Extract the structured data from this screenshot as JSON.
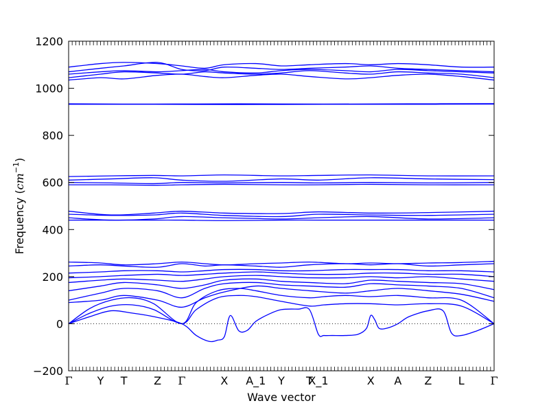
{
  "chart_data": {
    "type": "line",
    "xlabel": "Wave vector",
    "ylabel_text": "Frequency (",
    "ylabel_math": "cm",
    "ylabel_sup": "−1",
    "ylabel_close": ")",
    "ylim": [
      -200,
      1200
    ],
    "yticks": [
      -200,
      0,
      200,
      400,
      600,
      800,
      1000,
      1200
    ],
    "ytick_labels": [
      "−200",
      "0",
      "200",
      "400",
      "600",
      "800",
      "1000",
      "1200"
    ],
    "grid": false,
    "zero_line": true,
    "line_color": "#0000ff",
    "kpath_labels": [
      "Γ",
      "Y",
      "T",
      "Z",
      "Γ",
      "X",
      "A_1",
      "Y",
      "T",
      "X_1",
      "X",
      "A",
      "Z",
      "L",
      "Γ"
    ],
    "kpath_positions": [
      0,
      0.075,
      0.13,
      0.209,
      0.266,
      0.366,
      0.44,
      0.5,
      0.566,
      0.587,
      0.71,
      0.774,
      0.845,
      0.923,
      1.0
    ],
    "x_range": [
      0,
      1
    ],
    "bands": [
      {
        "name": "",
        "x": [
          0,
          0.05,
          0.1,
          0.15,
          0.2,
          0.266,
          0.3,
          0.33,
          0.35,
          0.366,
          0.38,
          0.4,
          0.42,
          0.44,
          0.47,
          0.5,
          0.54,
          0.566,
          0.587,
          0.6,
          0.62,
          0.65,
          0.68,
          0.7,
          0.71,
          0.72,
          0.73,
          0.75,
          0.774,
          0.8,
          0.845,
          0.88,
          0.9,
          0.923,
          0.96,
          1.0
        ],
        "y": [
          0,
          30,
          55,
          45,
          30,
          0,
          -50,
          -75,
          -70,
          -55,
          35,
          -30,
          -28,
          10,
          40,
          60,
          62,
          60,
          -45,
          -50,
          -50,
          -50,
          -45,
          -20,
          35,
          15,
          -20,
          -18,
          0,
          30,
          55,
          55,
          -40,
          -50,
          -30,
          0
        ]
      },
      {
        "name": "",
        "x": [
          0,
          0.05,
          0.1,
          0.15,
          0.2,
          0.266,
          0.3,
          0.35,
          0.4,
          0.44,
          0.5,
          0.566,
          0.6,
          0.65,
          0.71,
          0.774,
          0.845,
          0.923,
          1.0
        ],
        "y": [
          0,
          45,
          75,
          80,
          60,
          0,
          60,
          110,
          120,
          115,
          95,
          75,
          80,
          85,
          85,
          80,
          85,
          75,
          0
        ]
      },
      {
        "name": "",
        "x": [
          0,
          0.05,
          0.1,
          0.15,
          0.2,
          0.266,
          0.3,
          0.35,
          0.4,
          0.44,
          0.5,
          0.566,
          0.6,
          0.65,
          0.71,
          0.774,
          0.845,
          0.923,
          1.0
        ],
        "y": [
          0,
          65,
          100,
          110,
          85,
          0,
          90,
          140,
          150,
          140,
          120,
          110,
          115,
          120,
          115,
          120,
          110,
          100,
          0
        ]
      },
      {
        "name": "",
        "x": [
          0,
          0.075,
          0.13,
          0.209,
          0.266,
          0.32,
          0.366,
          0.44,
          0.5,
          0.566,
          0.65,
          0.71,
          0.774,
          0.845,
          0.923,
          1.0
        ],
        "y": [
          90,
          100,
          120,
          100,
          70,
          110,
          135,
          160,
          150,
          140,
          130,
          140,
          150,
          140,
          125,
          95
        ]
      },
      {
        "name": "",
        "x": [
          0,
          0.075,
          0.13,
          0.209,
          0.266,
          0.32,
          0.366,
          0.44,
          0.5,
          0.566,
          0.65,
          0.71,
          0.774,
          0.845,
          0.923,
          1.0
        ],
        "y": [
          100,
          130,
          150,
          140,
          110,
          150,
          170,
          175,
          165,
          160,
          155,
          170,
          165,
          160,
          150,
          110
        ]
      },
      {
        "name": "",
        "x": [
          0,
          0.075,
          0.13,
          0.209,
          0.266,
          0.32,
          0.366,
          0.44,
          0.5,
          0.566,
          0.65,
          0.71,
          0.774,
          0.845,
          0.923,
          1.0
        ],
        "y": [
          140,
          160,
          175,
          165,
          150,
          165,
          185,
          190,
          180,
          175,
          170,
          185,
          180,
          175,
          170,
          145
        ]
      },
      {
        "name": "",
        "x": [
          0,
          0.075,
          0.13,
          0.209,
          0.266,
          0.32,
          0.366,
          0.44,
          0.5,
          0.566,
          0.65,
          0.71,
          0.774,
          0.845,
          0.923,
          1.0
        ],
        "y": [
          175,
          185,
          190,
          185,
          180,
          190,
          200,
          205,
          200,
          195,
          195,
          200,
          195,
          200,
          190,
          180
        ]
      },
      {
        "name": "",
        "x": [
          0,
          0.075,
          0.13,
          0.209,
          0.266,
          0.32,
          0.366,
          0.44,
          0.5,
          0.566,
          0.65,
          0.71,
          0.774,
          0.845,
          0.923,
          1.0
        ],
        "y": [
          195,
          200,
          205,
          210,
          205,
          210,
          215,
          220,
          215,
          210,
          210,
          215,
          215,
          210,
          210,
          200
        ]
      },
      {
        "name": "",
        "x": [
          0,
          0.075,
          0.13,
          0.209,
          0.266,
          0.32,
          0.366,
          0.44,
          0.5,
          0.566,
          0.65,
          0.71,
          0.774,
          0.845,
          0.923,
          1.0
        ],
        "y": [
          215,
          220,
          225,
          225,
          220,
          225,
          230,
          230,
          225,
          225,
          230,
          230,
          230,
          225,
          225,
          220
        ]
      },
      {
        "name": "",
        "x": [
          0,
          0.075,
          0.13,
          0.209,
          0.266,
          0.32,
          0.366,
          0.44,
          0.5,
          0.566,
          0.65,
          0.71,
          0.774,
          0.845,
          0.923,
          1.0
        ],
        "y": [
          245,
          250,
          245,
          240,
          255,
          245,
          250,
          245,
          240,
          250,
          255,
          250,
          255,
          245,
          250,
          255
        ]
      },
      {
        "name": "",
        "x": [
          0,
          0.075,
          0.13,
          0.209,
          0.266,
          0.32,
          0.366,
          0.44,
          0.5,
          0.566,
          0.65,
          0.71,
          0.774,
          0.845,
          0.923,
          1.0
        ],
        "y": [
          262,
          258,
          250,
          255,
          262,
          255,
          250,
          255,
          258,
          262,
          255,
          258,
          255,
          258,
          260,
          265
        ]
      },
      {
        "name": "",
        "x": [
          0,
          0.1,
          0.2,
          0.266,
          0.366,
          0.5,
          0.587,
          0.71,
          0.845,
          1.0
        ],
        "y": [
          440,
          440,
          440,
          440,
          438,
          440,
          440,
          440,
          440,
          440
        ]
      },
      {
        "name": "",
        "x": [
          0,
          0.1,
          0.2,
          0.266,
          0.366,
          0.5,
          0.587,
          0.71,
          0.845,
          1.0
        ],
        "y": [
          450,
          440,
          445,
          455,
          450,
          445,
          450,
          455,
          445,
          450
        ]
      },
      {
        "name": "",
        "x": [
          0,
          0.1,
          0.2,
          0.266,
          0.366,
          0.5,
          0.587,
          0.71,
          0.845,
          1.0
        ],
        "y": [
          465,
          460,
          462,
          470,
          460,
          455,
          465,
          462,
          460,
          465
        ]
      },
      {
        "name": "",
        "x": [
          0,
          0.1,
          0.2,
          0.266,
          0.366,
          0.5,
          0.587,
          0.71,
          0.845,
          1.0
        ],
        "y": [
          478,
          462,
          470,
          478,
          470,
          468,
          475,
          470,
          472,
          478
        ]
      },
      {
        "name": "",
        "x": [
          0,
          0.1,
          0.2,
          0.266,
          0.366,
          0.5,
          0.587,
          0.71,
          0.845,
          1.0
        ],
        "y": [
          590,
          590,
          588,
          590,
          592,
          590,
          590,
          592,
          590,
          590
        ]
      },
      {
        "name": "",
        "x": [
          0,
          0.1,
          0.2,
          0.266,
          0.366,
          0.5,
          0.587,
          0.71,
          0.845,
          1.0
        ],
        "y": [
          600,
          598,
          595,
          600,
          598,
          600,
          598,
          600,
          598,
          600
        ]
      },
      {
        "name": "",
        "x": [
          0,
          0.1,
          0.2,
          0.266,
          0.366,
          0.5,
          0.587,
          0.71,
          0.845,
          1.0
        ],
        "y": [
          610,
          615,
          620,
          610,
          605,
          615,
          610,
          620,
          615,
          612
        ]
      },
      {
        "name": "",
        "x": [
          0,
          0.1,
          0.2,
          0.266,
          0.366,
          0.5,
          0.587,
          0.71,
          0.845,
          1.0
        ],
        "y": [
          625,
          628,
          630,
          628,
          632,
          628,
          630,
          632,
          628,
          628
        ]
      },
      {
        "name": "",
        "x": [
          0,
          0.2,
          0.4,
          0.6,
          0.8,
          1.0
        ],
        "y": [
          932,
          932,
          931,
          932,
          932,
          933
        ]
      },
      {
        "name": "",
        "x": [
          0,
          0.2,
          0.4,
          0.6,
          0.8,
          1.0
        ],
        "y": [
          934,
          933,
          934,
          933,
          934,
          935
        ]
      },
      {
        "name": "",
        "x": [
          0,
          0.075,
          0.13,
          0.209,
          0.266,
          0.32,
          0.366,
          0.44,
          0.5,
          0.566,
          0.65,
          0.71,
          0.774,
          0.845,
          0.923,
          1.0
        ],
        "y": [
          1035,
          1045,
          1040,
          1055,
          1060,
          1050,
          1045,
          1055,
          1060,
          1050,
          1040,
          1045,
          1055,
          1060,
          1050,
          1035
        ]
      },
      {
        "name": "",
        "x": [
          0,
          0.075,
          0.13,
          0.209,
          0.266,
          0.32,
          0.366,
          0.44,
          0.5,
          0.566,
          0.65,
          0.71,
          0.774,
          0.845,
          0.923,
          1.0
        ],
        "y": [
          1045,
          1060,
          1070,
          1065,
          1060,
          1070,
          1065,
          1060,
          1065,
          1075,
          1065,
          1060,
          1070,
          1065,
          1060,
          1045
        ]
      },
      {
        "name": "",
        "x": [
          0,
          0.075,
          0.13,
          0.209,
          0.266,
          0.32,
          0.366,
          0.44,
          0.5,
          0.566,
          0.65,
          0.71,
          0.774,
          0.845,
          0.923,
          1.0
        ],
        "y": [
          1060,
          1070,
          1075,
          1070,
          1075,
          1080,
          1070,
          1065,
          1075,
          1080,
          1075,
          1070,
          1080,
          1075,
          1070,
          1065
        ]
      },
      {
        "name": "",
        "x": [
          0,
          0.075,
          0.13,
          0.209,
          0.266,
          0.32,
          0.366,
          0.44,
          0.5,
          0.566,
          0.65,
          0.71,
          0.774,
          0.845,
          0.923,
          1.0
        ],
        "y": [
          1090,
          1105,
          1110,
          1105,
          1095,
          1085,
          1100,
          1105,
          1095,
          1100,
          1105,
          1100,
          1105,
          1100,
          1090,
          1090
        ]
      },
      {
        "name": "",
        "x": [
          0,
          0.075,
          0.13,
          0.209,
          0.266,
          0.32,
          0.366,
          0.44,
          0.5,
          0.566,
          0.65,
          0.71,
          0.774,
          0.845,
          0.923,
          1.0
        ],
        "y": [
          1070,
          1085,
          1095,
          1110,
          1080,
          1075,
          1090,
          1085,
          1080,
          1085,
          1090,
          1095,
          1085,
          1080,
          1075,
          1070
        ]
      }
    ]
  }
}
